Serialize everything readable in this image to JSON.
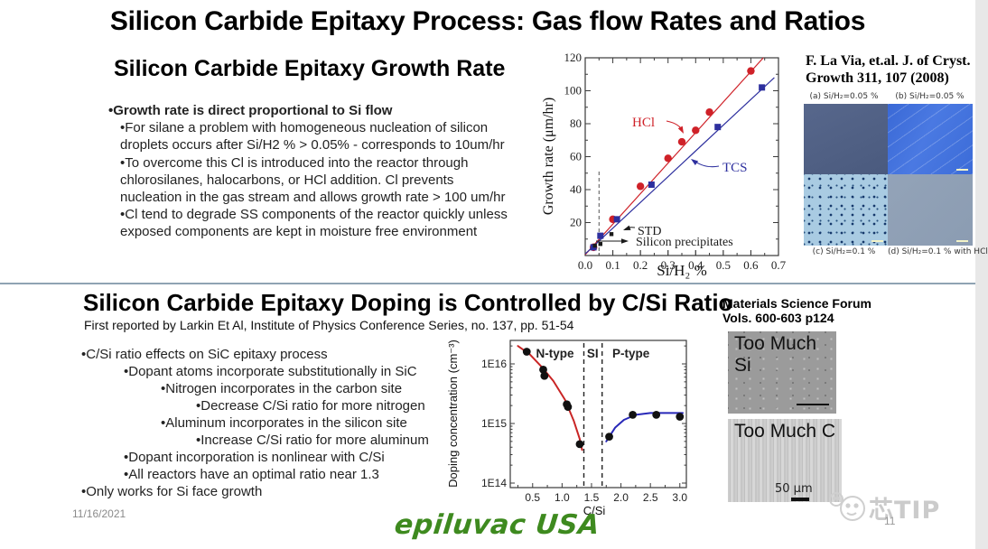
{
  "slide1": {
    "title": "Silicon Carbide Epitaxy Process:  Gas flow Rates and Ratios",
    "heading": "Silicon Carbide Epitaxy Growth Rate",
    "bullet_lines": [
      {
        "indent": 0,
        "bold": true,
        "text": "•Growth rate is direct proportional to Si flow"
      },
      {
        "indent": 1,
        "bold": false,
        "text": "•For silane a problem with homogeneous nucleation of silicon"
      },
      {
        "indent": 1,
        "bold": false,
        "text": "droplets occurs after Si/H2 % > 0.05% - corresponds to 10um/hr"
      },
      {
        "indent": 1,
        "bold": false,
        "text": "•To overcome this Cl is introduced into the reactor through"
      },
      {
        "indent": 1,
        "bold": false,
        "text": "chlorosilanes, halocarbons, or HCl addition. Cl prevents"
      },
      {
        "indent": 1,
        "bold": false,
        "text": "nucleation in the gas stream and allows growth rate > 100 um/hr"
      },
      {
        "indent": 1,
        "bold": false,
        "text": "•Cl tend to degrade SS components of the reactor quickly unless"
      },
      {
        "indent": 1,
        "bold": false,
        "text": "exposed components are kept in moisture free environment"
      }
    ],
    "reference": {
      "line1": "F. La Via, et.al. J. of Cryst.",
      "line2": "Growth 311, 107 (2008)"
    },
    "micrographs": {
      "label_a": "(a) Si/H₂=0.05 %",
      "label_b": "(b) Si/H₂=0.05 %",
      "label_c": "(c) Si/H₂=0.1 %",
      "label_d": "(d) Si/H₂=0.1 % with HCl"
    }
  },
  "slide2": {
    "heading": "Silicon Carbide Epitaxy Doping is Controlled by C/Si Ratio",
    "subheading": "First reported by Larkin Et Al, Institute of Physics Conference Series, no. 137, pp. 51-54",
    "bullet_lines": [
      {
        "indent": 0,
        "bold": false,
        "text": "•C/Si ratio effects on SiC epitaxy process"
      },
      {
        "indent": 1,
        "bold": false,
        "text": "•Dopant atoms incorporate substitutionally in SiC"
      },
      {
        "indent": 2,
        "bold": false,
        "text": "•Nitrogen incorporates in the carbon site"
      },
      {
        "indent": 3,
        "bold": false,
        "text": "•Decrease C/Si ratio for more nitrogen"
      },
      {
        "indent": 2,
        "bold": false,
        "text": "•Aluminum incorporates in the silicon site"
      },
      {
        "indent": 3,
        "bold": false,
        "text": "•Increase C/Si ratio for more aluminum"
      },
      {
        "indent": 1,
        "bold": false,
        "text": "•Dopant incorporation is nonlinear with C/Si"
      },
      {
        "indent": 1,
        "bold": false,
        "text": "•All reactors have an optimal ratio near 1.3"
      },
      {
        "indent": 0,
        "bold": false,
        "text": "•Only works for Si face growth"
      }
    ],
    "reference": {
      "line1": "Materials Science Forum",
      "line2": "Vols. 600-603 p124"
    },
    "too_much_si_label": "Too Much Si",
    "too_much_c_label": "Too Much C",
    "scale_label": "50 μm"
  },
  "footer": {
    "date": "11/16/2021",
    "logo": "epiluvac USA",
    "page": "11",
    "watermark": "芯TIP"
  },
  "colors": {
    "logo_green": "#3e8a1f",
    "divider_gray_blue": "#8fa3b3",
    "watermark_gray": "#cbcbcb",
    "hcl_red": "#cf2128",
    "tcs_blue": "#2d2f9e",
    "n_fit_red": "#c92525",
    "p_fit_blue": "#2828b8"
  },
  "chart_data": [
    {
      "id": "growth-rate-chart",
      "type": "scatter",
      "title": "",
      "xlabel": "Si/H₂ %",
      "ylabel": "Growth rate (μm/hr)",
      "xlim": [
        0.0,
        0.7
      ],
      "ylim": [
        0,
        120
      ],
      "xticks": [
        0.0,
        0.1,
        0.2,
        0.3,
        0.4,
        0.5,
        0.6,
        0.7
      ],
      "yticks": [
        20,
        40,
        60,
        80,
        100,
        120
      ],
      "grid": false,
      "dashed_vline_x": 0.05,
      "series": [
        {
          "name": "HCl",
          "color": "#cf2128",
          "marker": "circle",
          "points": [
            [
              0.03,
              5
            ],
            [
              0.1,
              22
            ],
            [
              0.2,
              42
            ],
            [
              0.3,
              59
            ],
            [
              0.35,
              69
            ],
            [
              0.4,
              76
            ],
            [
              0.45,
              87
            ],
            [
              0.6,
              112
            ]
          ],
          "trend": [
            [
              0.0,
              0.5
            ],
            [
              0.645,
              120
            ]
          ]
        },
        {
          "name": "TCS",
          "color": "#2d2f9e",
          "marker": "square",
          "points": [
            [
              0.03,
              5
            ],
            [
              0.055,
              12
            ],
            [
              0.115,
              22
            ],
            [
              0.24,
              43
            ],
            [
              0.48,
              78
            ],
            [
              0.64,
              102
            ]
          ],
          "trend": [
            [
              0.0,
              1
            ],
            [
              0.685,
              108
            ]
          ]
        },
        {
          "name": "STD",
          "color": "#1a1a1a",
          "marker": "square-small",
          "points": [
            [
              0.035,
              6
            ],
            [
              0.055,
              7
            ],
            [
              0.095,
              13
            ]
          ]
        }
      ],
      "annotations": [
        {
          "text": "HCl",
          "color": "#cf2128"
        },
        {
          "text": "TCS",
          "color": "#2d2f9e"
        },
        {
          "text": "STD",
          "color": "#1a1a1a"
        },
        {
          "text": "Silicon precipitates",
          "color": "#1a1a1a"
        }
      ]
    },
    {
      "id": "doping-vs-csi-chart",
      "type": "scatter",
      "title": "",
      "xlabel": "C/Si",
      "ylabel": "Doping concentration (cm⁻³)",
      "xlim": [
        0.12,
        3.11
      ],
      "ylog": true,
      "ylim": [
        100000000000000.0,
        2.5e+16
      ],
      "xticks": [
        0.5,
        1.0,
        1.5,
        2.0,
        2.5,
        3.0
      ],
      "yticks": [
        "1E14",
        "1E15",
        "1E16"
      ],
      "grid": false,
      "dashed_vlines": [
        1.37,
        1.68
      ],
      "region_labels": [
        {
          "text": "N-type",
          "x": 0.88
        },
        {
          "text": "SI",
          "x": 1.52
        },
        {
          "text": "P-type",
          "x": 2.17
        }
      ],
      "series": [
        {
          "name": "N-type data",
          "color": "#111111",
          "marker": "circle",
          "points": [
            [
              0.4,
              1.6e+16
            ],
            [
              0.68,
              8000000000000000.0
            ],
            [
              0.7,
              6300000000000000.0
            ],
            [
              1.08,
              2100000000000000.0
            ],
            [
              1.1,
              1900000000000000.0
            ],
            [
              1.3,
              450000000000000.0
            ]
          ]
        },
        {
          "name": "P-type data",
          "color": "#111111",
          "marker": "circle",
          "points": [
            [
              1.8,
              600000000000000.0
            ],
            [
              2.2,
              1400000000000000.0
            ],
            [
              2.6,
              1400000000000000.0
            ],
            [
              3.0,
              1300000000000000.0
            ]
          ]
        }
      ],
      "curves": [
        {
          "name": "N-type fit",
          "color": "#c92525",
          "points": [
            [
              0.25,
              2e+16
            ],
            [
              0.45,
              1.45e+16
            ],
            [
              0.65,
              9000000000000000.0
            ],
            [
              0.85,
              5200000000000000.0
            ],
            [
              1.05,
              2500000000000000.0
            ],
            [
              1.2,
              1100000000000000.0
            ],
            [
              1.3,
              550000000000000.0
            ],
            [
              1.34,
              360000000000000.0
            ]
          ]
        },
        {
          "name": "P-type fit",
          "color": "#2828b8",
          "points": [
            [
              1.75,
              500000000000000.0
            ],
            [
              1.9,
              850000000000000.0
            ],
            [
              2.05,
              1150000000000000.0
            ],
            [
              2.25,
              1400000000000000.0
            ],
            [
              2.5,
              1500000000000000.0
            ],
            [
              2.75,
              1500000000000000.0
            ],
            [
              3.05,
              1500000000000000.0
            ]
          ]
        }
      ]
    }
  ]
}
